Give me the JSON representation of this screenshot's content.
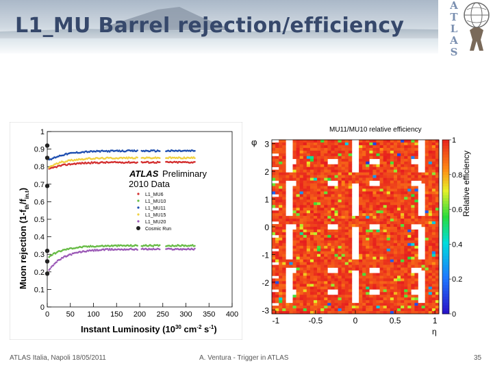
{
  "slide": {
    "title": "L1_MU Barrel rejection/efficiency",
    "logo_letters": [
      "A",
      "T",
      "L",
      "A",
      "S"
    ],
    "footer_left": "ATLAS Italia, Napoli 18/05/2011",
    "footer_center": "A. Ventura - Trigger in ATLAS",
    "footer_right": "35"
  },
  "chart_data": [
    {
      "type": "scatter",
      "xlabel": "Instant Luminosity (10",
      "xlabel_sup": "30",
      "xlabel_unit": " cm",
      "xlabel_sup2": "-2",
      "xlabel_tail": " s",
      "xlabel_sup3": "-1",
      "xlabel_close": ")",
      "ylabel": "Muon rejection (1-f",
      "ylabel_sub": "th",
      "ylabel_mid": "/f",
      "ylabel_sub2": "in.t",
      "ylabel_close": ")",
      "xticks": [
        "0",
        "50",
        "100",
        "150",
        "200",
        "250",
        "300",
        "350",
        "400"
      ],
      "yticks": [
        "0",
        "0.1",
        "0.2",
        "0.3",
        "0.4",
        "0.5",
        "0.6",
        "0.7",
        "0.8",
        "0.9",
        "1"
      ],
      "xlim": [
        0,
        400
      ],
      "ylim": [
        0,
        1
      ],
      "annotation_atlas": "ATLAS",
      "annotation_prelim": "Preliminary",
      "annotation_data": "2010 Data",
      "legend_position": "center-right",
      "colors": {
        "L1_MU6": "#d32f2f",
        "L1_MU10": "#66bb44",
        "L1_MU11": "#1f4fb0",
        "L1_MU15": "#f0d040",
        "L1_MU20": "#9b59b6",
        "cosmic": "#222222"
      },
      "series": [
        {
          "name": "L1_MU6",
          "plateau": 0.825,
          "start": 0.78
        },
        {
          "name": "L1_MU10",
          "plateau": 0.35,
          "start": 0.28
        },
        {
          "name": "L1_MU11",
          "plateau": 0.89,
          "start": 0.83
        },
        {
          "name": "L1_MU15",
          "plateau": 0.85,
          "start": 0.79
        },
        {
          "name": "L1_MU20",
          "plateau": 0.33,
          "start": 0.2
        },
        {
          "name": "Cosmic Run",
          "plateau": null,
          "start": null
        }
      ],
      "cosmic_points": [
        0.92,
        0.85,
        0.69,
        0.32,
        0.26,
        0.19
      ]
    },
    {
      "type": "heatmap",
      "title": "MU11/MU10 relative efficiency",
      "xlabel": "η",
      "ylabel": "φ",
      "colorbar_label": "Relative efficiency",
      "xticks": [
        "-1",
        "-0.5",
        "0",
        "0.5",
        "1"
      ],
      "yticks": [
        "-3",
        "-2",
        "-1",
        "0",
        "1",
        "2",
        "3"
      ],
      "colorbar_ticks": [
        "0",
        "0.2",
        "0.4",
        "0.6",
        "0.8",
        "1"
      ],
      "xlim": [
        -1.05,
        1.05
      ],
      "ylim": [
        -3.14,
        3.14
      ],
      "zlim": [
        0,
        1
      ],
      "grid": false
    }
  ]
}
